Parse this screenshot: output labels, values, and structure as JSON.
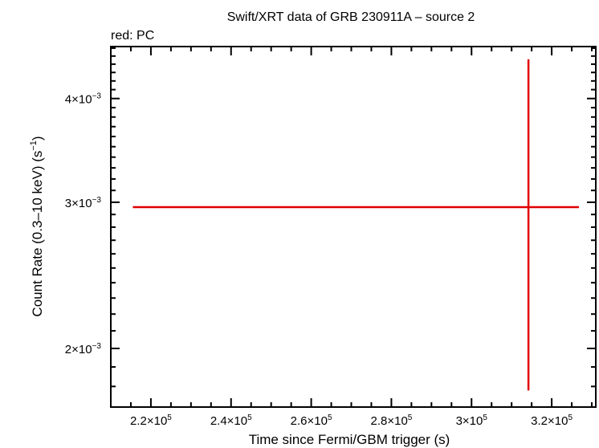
{
  "chart_data": {
    "type": "scatter",
    "title": "Swift/XRT data of GRB 230911A – source 2",
    "subtitle": "red: PC",
    "xlabel": "Time since Fermi/GBM trigger (s)",
    "ylabel": "Count Rate (0.3–10 keV) (s",
    "ylabel_sup": "−1",
    "ylabel_end": ")",
    "xlim": [
      210000,
      331000
    ],
    "ylim": [
      0.0017,
      0.00462
    ],
    "x_ticks": [
      {
        "value": 220000,
        "mant": "2.2×10",
        "exp": "5"
      },
      {
        "value": 240000,
        "mant": "2.4×10",
        "exp": "5"
      },
      {
        "value": 260000,
        "mant": "2.6×10",
        "exp": "5"
      },
      {
        "value": 280000,
        "mant": "2.8×10",
        "exp": "5"
      },
      {
        "value": 300000,
        "mant": "3×10",
        "exp": "5"
      },
      {
        "value": 320000,
        "mant": "3.2×10",
        "exp": "5"
      }
    ],
    "y_ticks": [
      {
        "value": 0.002,
        "mant": "2×10",
        "exp": "−3"
      },
      {
        "value": 0.003,
        "mant": "3×10",
        "exp": "−3"
      },
      {
        "value": 0.004,
        "mant": "4×10",
        "exp": "−3"
      }
    ],
    "series": [
      {
        "name": "PC",
        "color": "#e00000",
        "points": [
          {
            "x": 314200,
            "x_low": 215500,
            "x_high": 326800,
            "y": 0.00296,
            "y_low": 0.00178,
            "y_high": 0.00446
          }
        ]
      }
    ]
  }
}
